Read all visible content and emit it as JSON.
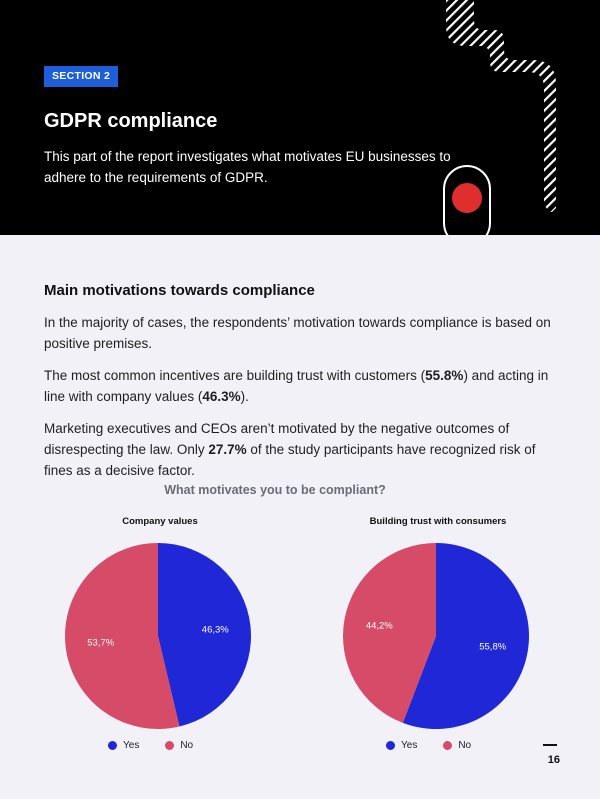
{
  "header": {
    "section_badge": "SECTION 2",
    "title": "GDPR compliance",
    "description": "This part of the report investigates what motivates EU businesses to adhere to the requirements of GDPR."
  },
  "main": {
    "heading": "Main motivations towards compliance",
    "para1": "In the majority of cases, the respondents’ motivation towards compliance is based on positive premises.",
    "para2": {
      "before": "The most common incentives are building trust with customers (",
      "bold1": "55.8%",
      "middle": ") and acting in line with company values (",
      "bold2": "46.3%",
      "after": ")."
    },
    "para3": {
      "before": "Marketing executives and CEOs aren’t motivated by the negative outcomes of disrespecting the law. Only ",
      "bold": "27.7%",
      "after": " of the study participants have recognized risk of fines as a decisive factor."
    }
  },
  "charts_title": "What motivates you to be compliant?",
  "colors": {
    "yes": "#1f27d6",
    "no": "#d64c68",
    "badge": "#1e5ed8",
    "red_light": "#e02d2d"
  },
  "chart_data": [
    {
      "type": "pie",
      "title": "Company values",
      "labels": [
        "Yes",
        "No"
      ],
      "values": [
        46.3,
        53.7
      ],
      "display_labels": [
        "46,3%",
        "53,7%"
      ],
      "colors": [
        "#1f27d6",
        "#d64c68"
      ],
      "legend": "bottom"
    },
    {
      "type": "pie",
      "title": "Building trust with consumers",
      "labels": [
        "Yes",
        "No"
      ],
      "values": [
        55.8,
        44.2
      ],
      "display_labels": [
        "55,8%",
        "44,2%"
      ],
      "colors": [
        "#1f27d6",
        "#d64c68"
      ],
      "legend": "bottom"
    }
  ],
  "footer": {
    "page_number": "16"
  }
}
